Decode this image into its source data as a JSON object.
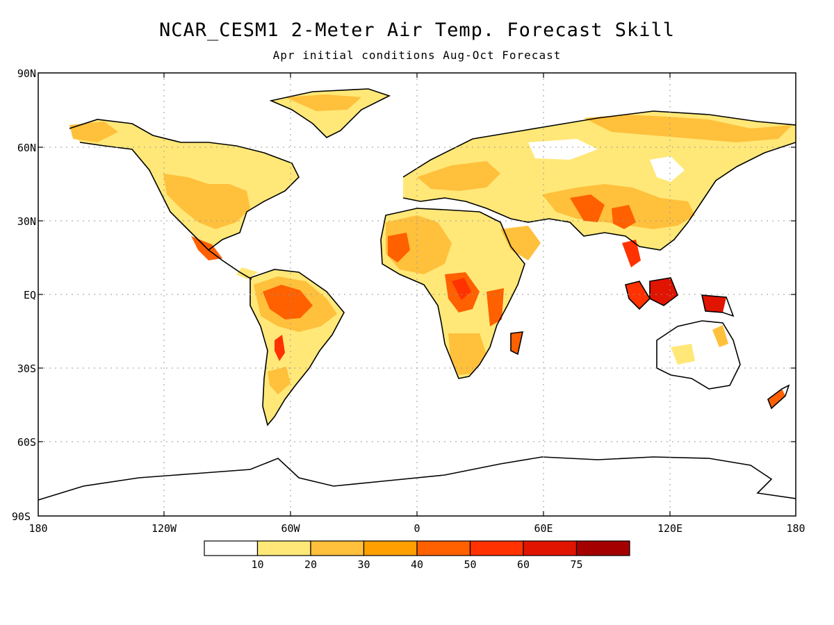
{
  "title": "NCAR_CESM1 2-Meter Air Temp. Forecast Skill",
  "subtitle": "Apr initial conditions  Aug-Oct Forecast",
  "map": {
    "lat_labels": [
      "90N",
      "60N",
      "30N",
      "EQ",
      "30S",
      "60S",
      "90S"
    ],
    "lon_labels": [
      "180",
      "120W",
      "60W",
      "0",
      "60E",
      "120E",
      "180"
    ]
  },
  "colorbar": {
    "labels": [
      "10",
      "20",
      "30",
      "40",
      "50",
      "60",
      "75"
    ],
    "colors": [
      "#ffffff",
      "#ffe878",
      "#ffc03c",
      "#ffa000",
      "#ff6000",
      "#ff3200",
      "#e11400",
      "#a50000"
    ]
  }
}
